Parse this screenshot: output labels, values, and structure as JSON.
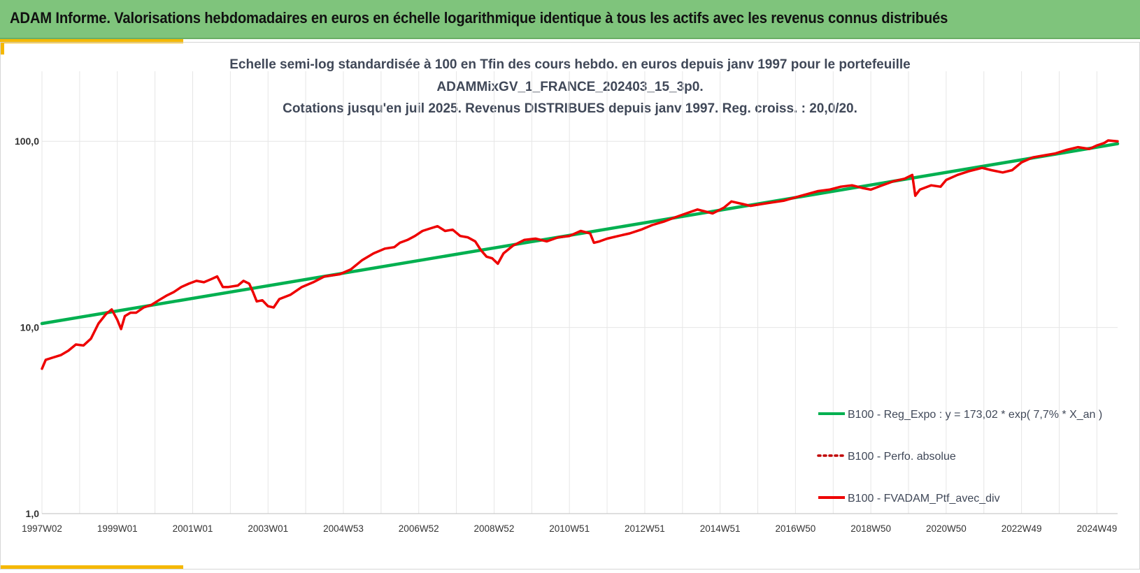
{
  "header": {
    "title": "ADAM Informe. Valorisations hebdomadaires en euros en échelle logarithmique identique à tous les actifs avec les revenus connus distribués"
  },
  "colors": {
    "banner": "#7fc47c",
    "accent": "#f5b800",
    "regression": "#00b050",
    "portfolio": "#ee0000",
    "perf_absolue": "#c00000",
    "grid": "#e6e6e6"
  },
  "chart_data": {
    "type": "line",
    "title_lines": [
      "Echelle semi-log standardisée  à 100 en Tfin des cours hebdo.  en euros depuis janv 1997 pour le portefeuille",
      "ADAMMixGV_1_FRANCE_202403_15_3p0.",
      "Cotations jusqu'en juil 2025. Revenus DISTRIBUES depuis janv 1997. Reg. croiss. : 20,0/20."
    ],
    "y_scale": "log",
    "ylim": [
      1,
      200
    ],
    "y_ticks": [
      "1,0",
      "10,0",
      "100,0"
    ],
    "x_range_years": [
      1997.0,
      2025.55
    ],
    "x_ticks": [
      {
        "label": "1997W02",
        "year": 1997.0
      },
      {
        "label": "1999W01",
        "year": 1999.0
      },
      {
        "label": "2001W01",
        "year": 2001.0
      },
      {
        "label": "2003W01",
        "year": 2003.0
      },
      {
        "label": "2004W53",
        "year": 2005.0
      },
      {
        "label": "2006W52",
        "year": 2007.0
      },
      {
        "label": "2008W52",
        "year": 2009.0
      },
      {
        "label": "2010W51",
        "year": 2011.0
      },
      {
        "label": "2012W51",
        "year": 2013.0
      },
      {
        "label": "2014W51",
        "year": 2015.0
      },
      {
        "label": "2016W50",
        "year": 2017.0
      },
      {
        "label": "2018W50",
        "year": 2019.0
      },
      {
        "label": "2020W50",
        "year": 2021.0
      },
      {
        "label": "2022W49",
        "year": 2023.0
      },
      {
        "label": "2024W49",
        "year": 2025.0
      }
    ],
    "grid": "vertical",
    "legend_position": "bottom-right",
    "series": [
      {
        "name": "B100 - Reg_Expo : y = 173,02 * exp( 7,7% *  X_an )",
        "style": "solid",
        "color": "#00b050",
        "points": [
          [
            1997.0,
            10.5
          ],
          [
            2025.55,
            97.0
          ]
        ]
      },
      {
        "name": "B100 - Perfo. absolue",
        "style": "dotted",
        "color": "#c00000",
        "points": []
      },
      {
        "name": "B100 - FVADAM_Ptf_avec_div",
        "style": "solid",
        "color": "#ee0000",
        "points": [
          [
            1997.0,
            6.0
          ],
          [
            1997.1,
            6.7
          ],
          [
            1997.3,
            6.9
          ],
          [
            1997.5,
            7.1
          ],
          [
            1997.7,
            7.5
          ],
          [
            1997.9,
            8.1
          ],
          [
            1998.1,
            8.0
          ],
          [
            1998.3,
            8.7
          ],
          [
            1998.5,
            10.5
          ],
          [
            1998.7,
            11.8
          ],
          [
            1998.85,
            12.5
          ],
          [
            1999.0,
            11.0
          ],
          [
            1999.1,
            9.8
          ],
          [
            1999.2,
            11.5
          ],
          [
            1999.35,
            12.0
          ],
          [
            1999.5,
            12.0
          ],
          [
            1999.7,
            12.8
          ],
          [
            1999.9,
            13.2
          ],
          [
            2000.1,
            14.0
          ],
          [
            2000.3,
            14.8
          ],
          [
            2000.5,
            15.5
          ],
          [
            2000.7,
            16.5
          ],
          [
            2000.9,
            17.2
          ],
          [
            2001.1,
            17.8
          ],
          [
            2001.3,
            17.5
          ],
          [
            2001.5,
            18.2
          ],
          [
            2001.65,
            18.8
          ],
          [
            2001.8,
            16.5
          ],
          [
            2001.95,
            16.5
          ],
          [
            2002.2,
            16.8
          ],
          [
            2002.35,
            17.8
          ],
          [
            2002.5,
            17.2
          ],
          [
            2002.6,
            15.5
          ],
          [
            2002.7,
            13.8
          ],
          [
            2002.85,
            14.0
          ],
          [
            2003.0,
            13.0
          ],
          [
            2003.15,
            12.8
          ],
          [
            2003.3,
            14.2
          ],
          [
            2003.6,
            15.0
          ],
          [
            2003.9,
            16.5
          ],
          [
            2004.2,
            17.5
          ],
          [
            2004.5,
            18.8
          ],
          [
            2004.9,
            19.3
          ],
          [
            2005.2,
            20.5
          ],
          [
            2005.5,
            23.0
          ],
          [
            2005.8,
            25.0
          ],
          [
            2006.1,
            26.5
          ],
          [
            2006.35,
            27.0
          ],
          [
            2006.5,
            28.5
          ],
          [
            2006.7,
            29.5
          ],
          [
            2006.9,
            31.0
          ],
          [
            2007.1,
            33.0
          ],
          [
            2007.3,
            34.0
          ],
          [
            2007.5,
            35.0
          ],
          [
            2007.7,
            33.0
          ],
          [
            2007.9,
            33.5
          ],
          [
            2008.1,
            31.0
          ],
          [
            2008.3,
            30.5
          ],
          [
            2008.5,
            29.0
          ],
          [
            2008.65,
            26.0
          ],
          [
            2008.8,
            24.0
          ],
          [
            2008.95,
            23.5
          ],
          [
            2009.1,
            22.0
          ],
          [
            2009.25,
            25.0
          ],
          [
            2009.5,
            27.5
          ],
          [
            2009.8,
            29.5
          ],
          [
            2010.1,
            30.0
          ],
          [
            2010.4,
            29.0
          ],
          [
            2010.7,
            30.5
          ],
          [
            2011.0,
            31.0
          ],
          [
            2011.3,
            33.0
          ],
          [
            2011.55,
            32.0
          ],
          [
            2011.65,
            28.5
          ],
          [
            2011.8,
            29.0
          ],
          [
            2012.0,
            30.0
          ],
          [
            2012.3,
            31.0
          ],
          [
            2012.6,
            32.0
          ],
          [
            2012.9,
            33.5
          ],
          [
            2013.2,
            35.5
          ],
          [
            2013.5,
            37.0
          ],
          [
            2013.8,
            39.0
          ],
          [
            2014.1,
            41.0
          ],
          [
            2014.4,
            43.0
          ],
          [
            2014.6,
            42.0
          ],
          [
            2014.8,
            41.0
          ],
          [
            2015.1,
            44.0
          ],
          [
            2015.3,
            47.5
          ],
          [
            2015.6,
            46.0
          ],
          [
            2015.8,
            45.0
          ],
          [
            2016.1,
            46.0
          ],
          [
            2016.4,
            47.0
          ],
          [
            2016.7,
            48.0
          ],
          [
            2017.0,
            50.0
          ],
          [
            2017.3,
            52.0
          ],
          [
            2017.6,
            54.0
          ],
          [
            2017.9,
            55.0
          ],
          [
            2018.2,
            57.0
          ],
          [
            2018.5,
            58.0
          ],
          [
            2018.8,
            56.0
          ],
          [
            2019.0,
            55.0
          ],
          [
            2019.3,
            58.0
          ],
          [
            2019.6,
            61.0
          ],
          [
            2019.9,
            63.0
          ],
          [
            2020.1,
            66.0
          ],
          [
            2020.18,
            51.0
          ],
          [
            2020.3,
            55.0
          ],
          [
            2020.6,
            58.0
          ],
          [
            2020.85,
            57.0
          ],
          [
            2021.0,
            62.0
          ],
          [
            2021.3,
            66.0
          ],
          [
            2021.6,
            69.0
          ],
          [
            2021.95,
            72.0
          ],
          [
            2022.2,
            70.0
          ],
          [
            2022.5,
            68.0
          ],
          [
            2022.75,
            70.0
          ],
          [
            2023.0,
            77.0
          ],
          [
            2023.3,
            82.0
          ],
          [
            2023.6,
            84.0
          ],
          [
            2023.9,
            86.0
          ],
          [
            2024.2,
            90.0
          ],
          [
            2024.5,
            93.0
          ],
          [
            2024.8,
            91.0
          ],
          [
            2025.0,
            95.0
          ],
          [
            2025.2,
            98.0
          ],
          [
            2025.3,
            101.0
          ],
          [
            2025.55,
            100.0
          ]
        ]
      }
    ]
  }
}
